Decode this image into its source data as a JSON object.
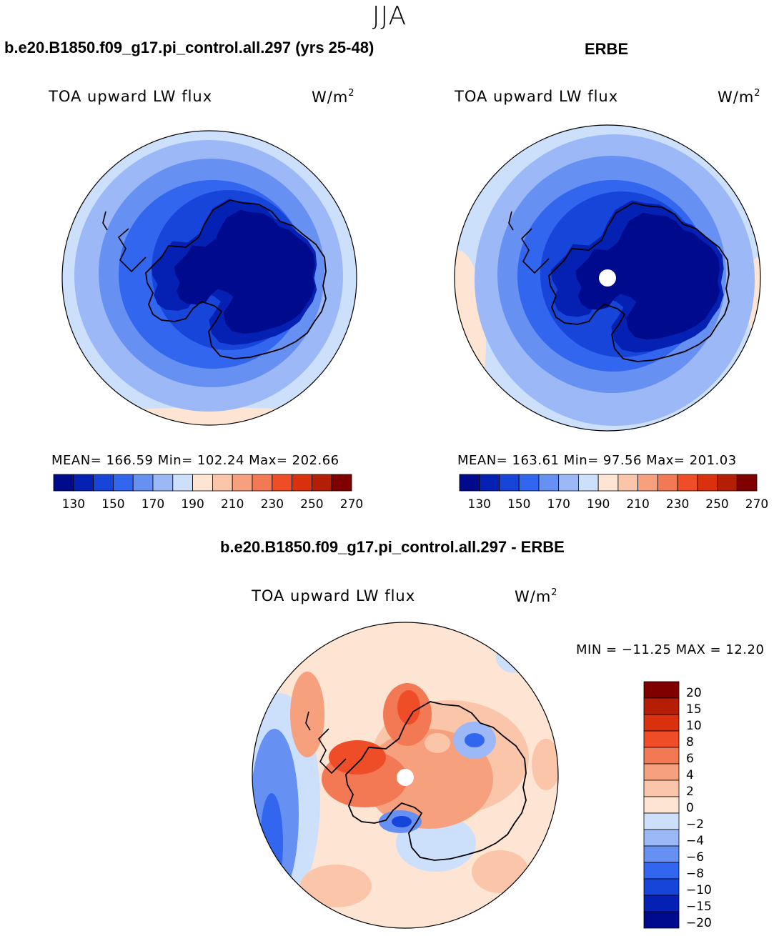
{
  "season": "JJA",
  "panel_left": {
    "case_title": "b.e20.B1850.f09_g17.pi_control.all.297 (yrs 25-48)",
    "variable": "TOA upward LW flux",
    "units_base": "W/m",
    "units_exp": "2",
    "stats": "MEAN=  166.59   Min=  102.24   Max=  202.66"
  },
  "panel_right": {
    "case_title": "ERBE",
    "variable": "TOA upward LW flux",
    "units_base": "W/m",
    "units_exp": "2",
    "stats": "MEAN=  163.61   Min=   97.56   Max=  201.03"
  },
  "panel_diff": {
    "case_title": "b.e20.B1850.f09_g17.pi_control.all.297 - ERBE",
    "variable": "TOA upward LW flux",
    "units_base": "W/m",
    "units_exp": "2",
    "stats": "MIN = −11.25 MAX =   12.20"
  },
  "colorbar_abs": {
    "colors": [
      "#000a8c",
      "#0521b3",
      "#1744d9",
      "#3366ee",
      "#6690f2",
      "#9db8f7",
      "#cde0fb",
      "#fde4d3",
      "#fbc5aa",
      "#f7a07d",
      "#f37955",
      "#ee4d27",
      "#d9300e",
      "#b31e04",
      "#800000"
    ],
    "tick_labels": [
      "130",
      "150",
      "170",
      "190",
      "210",
      "230",
      "250",
      "270"
    ]
  },
  "colorbar_diff": {
    "colors": [
      "#000a8c",
      "#0521b3",
      "#1744d9",
      "#3366ee",
      "#6690f2",
      "#9db8f7",
      "#cde0fb",
      "#fde4d3",
      "#fbc5aa",
      "#f7a07d",
      "#f37955",
      "#ee4d27",
      "#d9300e",
      "#b31e04",
      "#800000"
    ],
    "tick_labels": [
      "20",
      "15",
      "10",
      "8",
      "6",
      "4",
      "2",
      "0",
      "−2",
      "−4",
      "−6",
      "−8",
      "−10",
      "−15",
      "−20"
    ]
  }
}
